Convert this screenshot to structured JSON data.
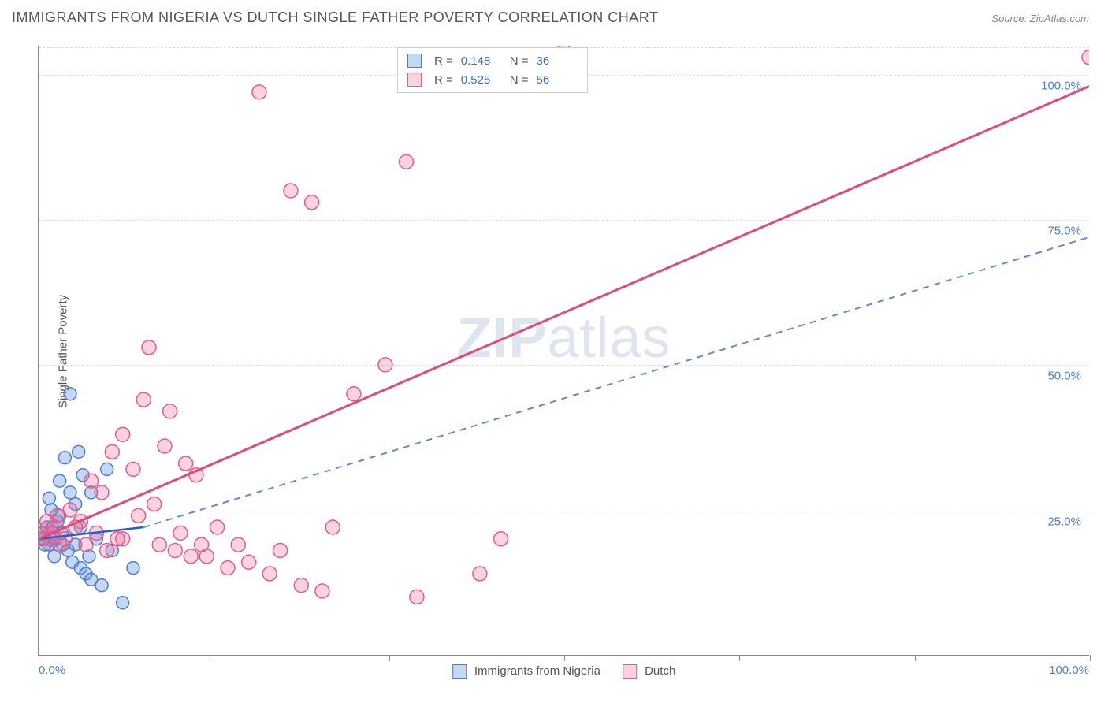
{
  "title": "IMMIGRANTS FROM NIGERIA VS DUTCH SINGLE FATHER POVERTY CORRELATION CHART",
  "source_label": "Source:",
  "source_name": "ZipAtlas.com",
  "ylabel": "Single Father Poverty",
  "watermark": {
    "bold": "ZIP",
    "rest": "atlas"
  },
  "chart": {
    "type": "scatter",
    "background_color": "#ffffff",
    "grid_color": "#dddddd",
    "axis_color": "#888888",
    "tick_label_color": "#4a7fd6",
    "xlim": [
      0,
      100
    ],
    "ylim": [
      0,
      105
    ],
    "ytick_positions": [
      25,
      50,
      75,
      100
    ],
    "ytick_labels": [
      "25.0%",
      "50.0%",
      "75.0%",
      "100.0%"
    ],
    "xtick_positions": [
      0,
      16.67,
      33.33,
      50,
      66.67,
      83.33,
      100
    ],
    "x_axis_label_left": "0.0%",
    "x_axis_label_right": "100.0%",
    "series": [
      {
        "name": "Immigrants from Nigeria",
        "marker_color_fill": "rgba(90,140,220,0.35)",
        "marker_color_stroke": "#4a7fd6",
        "marker_radius": 8,
        "line_color": "#1f5fc9",
        "line_width": 2.5,
        "line_dash": "none",
        "trend_dash_color": "#5a8cdc",
        "r_value": "0.148",
        "n_value": "36",
        "trend_start": {
          "x": 0,
          "y": 20
        },
        "trend_solid_end": {
          "x": 10,
          "y": 22
        },
        "trend_dash_end": {
          "x": 100,
          "y": 72
        },
        "points": [
          {
            "x": 0.5,
            "y": 20
          },
          {
            "x": 0.8,
            "y": 22
          },
          {
            "x": 1.0,
            "y": 19
          },
          {
            "x": 1.2,
            "y": 25
          },
          {
            "x": 1.5,
            "y": 17
          },
          {
            "x": 1.8,
            "y": 23
          },
          {
            "x": 2.0,
            "y": 30
          },
          {
            "x": 2.2,
            "y": 21
          },
          {
            "x": 2.5,
            "y": 34
          },
          {
            "x": 2.8,
            "y": 18
          },
          {
            "x": 3.0,
            "y": 28
          },
          {
            "x": 3.2,
            "y": 16
          },
          {
            "x": 3.5,
            "y": 26
          },
          {
            "x": 4.0,
            "y": 15
          },
          {
            "x": 4.2,
            "y": 31
          },
          {
            "x": 4.5,
            "y": 14
          },
          {
            "x": 5.0,
            "y": 13
          },
          {
            "x": 5.5,
            "y": 20
          },
          {
            "x": 6.0,
            "y": 12
          },
          {
            "x": 6.5,
            "y": 32
          },
          {
            "x": 3.0,
            "y": 45
          },
          {
            "x": 3.8,
            "y": 35
          },
          {
            "x": 1.0,
            "y": 27
          },
          {
            "x": 2.0,
            "y": 24
          },
          {
            "x": 0.3,
            "y": 21
          },
          {
            "x": 0.6,
            "y": 19
          },
          {
            "x": 1.3,
            "y": 22
          },
          {
            "x": 1.6,
            "y": 20
          },
          {
            "x": 2.3,
            "y": 19
          },
          {
            "x": 4.8,
            "y": 17
          },
          {
            "x": 7.0,
            "y": 18
          },
          {
            "x": 5.0,
            "y": 28
          },
          {
            "x": 4.0,
            "y": 22
          },
          {
            "x": 8.0,
            "y": 9
          },
          {
            "x": 9.0,
            "y": 15
          },
          {
            "x": 3.5,
            "y": 19
          }
        ]
      },
      {
        "name": "Dutch",
        "marker_color_fill": "rgba(235,110,150,0.30)",
        "marker_color_stroke": "#e85a8a",
        "marker_radius": 9,
        "line_color": "#e04a7d",
        "line_width": 3,
        "line_dash": "none",
        "r_value": "0.525",
        "n_value": "56",
        "trend_start": {
          "x": 0,
          "y": 20
        },
        "trend_solid_end": {
          "x": 100,
          "y": 98
        },
        "points": [
          {
            "x": 0.5,
            "y": 21
          },
          {
            "x": 1.0,
            "y": 20
          },
          {
            "x": 1.5,
            "y": 22
          },
          {
            "x": 2.0,
            "y": 19
          },
          {
            "x": 3.0,
            "y": 25
          },
          {
            "x": 4.0,
            "y": 23
          },
          {
            "x": 5.0,
            "y": 30
          },
          {
            "x": 6.0,
            "y": 28
          },
          {
            "x": 7.0,
            "y": 35
          },
          {
            "x": 8.0,
            "y": 38
          },
          {
            "x": 9.0,
            "y": 32
          },
          {
            "x": 10.0,
            "y": 44
          },
          {
            "x": 11.0,
            "y": 26
          },
          {
            "x": 12.0,
            "y": 36
          },
          {
            "x": 13.0,
            "y": 18
          },
          {
            "x": 14.0,
            "y": 33
          },
          {
            "x": 15.0,
            "y": 31
          },
          {
            "x": 16.0,
            "y": 17
          },
          {
            "x": 17.0,
            "y": 22
          },
          {
            "x": 18.0,
            "y": 15
          },
          {
            "x": 19.0,
            "y": 19
          },
          {
            "x": 20.0,
            "y": 16
          },
          {
            "x": 8.0,
            "y": 20
          },
          {
            "x": 9.5,
            "y": 24
          },
          {
            "x": 11.5,
            "y": 19
          },
          {
            "x": 12.5,
            "y": 42
          },
          {
            "x": 10.5,
            "y": 53
          },
          {
            "x": 22.0,
            "y": 14
          },
          {
            "x": 23.0,
            "y": 18
          },
          {
            "x": 25.0,
            "y": 12
          },
          {
            "x": 27.0,
            "y": 11
          },
          {
            "x": 24.0,
            "y": 80
          },
          {
            "x": 26.0,
            "y": 78
          },
          {
            "x": 21.0,
            "y": 97
          },
          {
            "x": 35.0,
            "y": 85
          },
          {
            "x": 36.0,
            "y": 10
          },
          {
            "x": 33.0,
            "y": 50
          },
          {
            "x": 42.0,
            "y": 14
          },
          {
            "x": 44.0,
            "y": 20
          },
          {
            "x": 50.0,
            "y": 104
          },
          {
            "x": 100.0,
            "y": 103
          },
          {
            "x": 0.8,
            "y": 23
          },
          {
            "x": 1.2,
            "y": 21
          },
          {
            "x": 1.8,
            "y": 24
          },
          {
            "x": 2.5,
            "y": 20
          },
          {
            "x": 3.5,
            "y": 22
          },
          {
            "x": 4.5,
            "y": 19
          },
          {
            "x": 5.5,
            "y": 21
          },
          {
            "x": 6.5,
            "y": 18
          },
          {
            "x": 7.5,
            "y": 20
          },
          {
            "x": 13.5,
            "y": 21
          },
          {
            "x": 14.5,
            "y": 17
          },
          {
            "x": 15.5,
            "y": 19
          },
          {
            "x": 30.0,
            "y": 45
          },
          {
            "x": 28.0,
            "y": 22
          },
          {
            "x": 0.3,
            "y": 20
          }
        ]
      }
    ],
    "legend_top": {
      "r_label": "R =",
      "n_label": "N ="
    },
    "legend_bottom": {}
  }
}
